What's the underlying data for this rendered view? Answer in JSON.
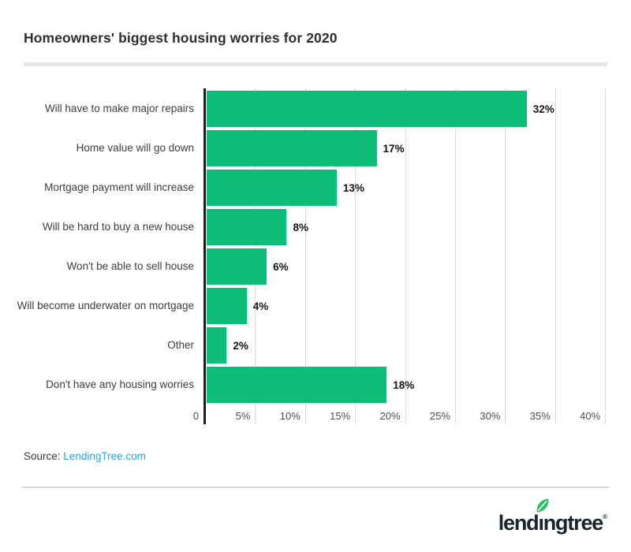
{
  "title": "Homeowners' biggest housing worries for 2020",
  "chart_data": {
    "type": "bar",
    "orientation": "horizontal",
    "title": "Homeowners' biggest housing worries for 2020",
    "categories": [
      "Will have to make major repairs",
      "Home value will go down",
      "Mortgage payment will increase",
      "Will be hard to buy a new house",
      "Won't be able to sell house",
      "Will become underwater on mortgage",
      "Other",
      "Don't have any housing worries"
    ],
    "values": [
      32,
      17,
      13,
      8,
      6,
      4,
      2,
      18
    ],
    "value_labels": [
      "32%",
      "17%",
      "13%",
      "8%",
      "6%",
      "4%",
      "2%",
      "18%"
    ],
    "x_tick_values": [
      0,
      5,
      10,
      15,
      20,
      25,
      30,
      35,
      40
    ],
    "x_tick_labels": [
      "0",
      "5%",
      "10%",
      "15%",
      "20%",
      "25%",
      "30%",
      "35%",
      "40%"
    ],
    "xlim": [
      0,
      40
    ],
    "grid": true,
    "legend": false,
    "bar_color": "#0EBD77"
  },
  "source": {
    "prefix": "Source:",
    "link_text": "LendingTree.com"
  },
  "logo": {
    "part1": "lend",
    "letter_i": "ı",
    "part2": "ngtree",
    "trademark": "®"
  },
  "colors": {
    "bar_green": "#0EBD77",
    "leaf_green": "#23C166",
    "link_blue": "#29A8E0",
    "logo_navy": "#18242E",
    "axis_black": "#1D1D1D",
    "gridline_gray": "#DCDCDC",
    "rule_gray": "#E6E6E6"
  }
}
